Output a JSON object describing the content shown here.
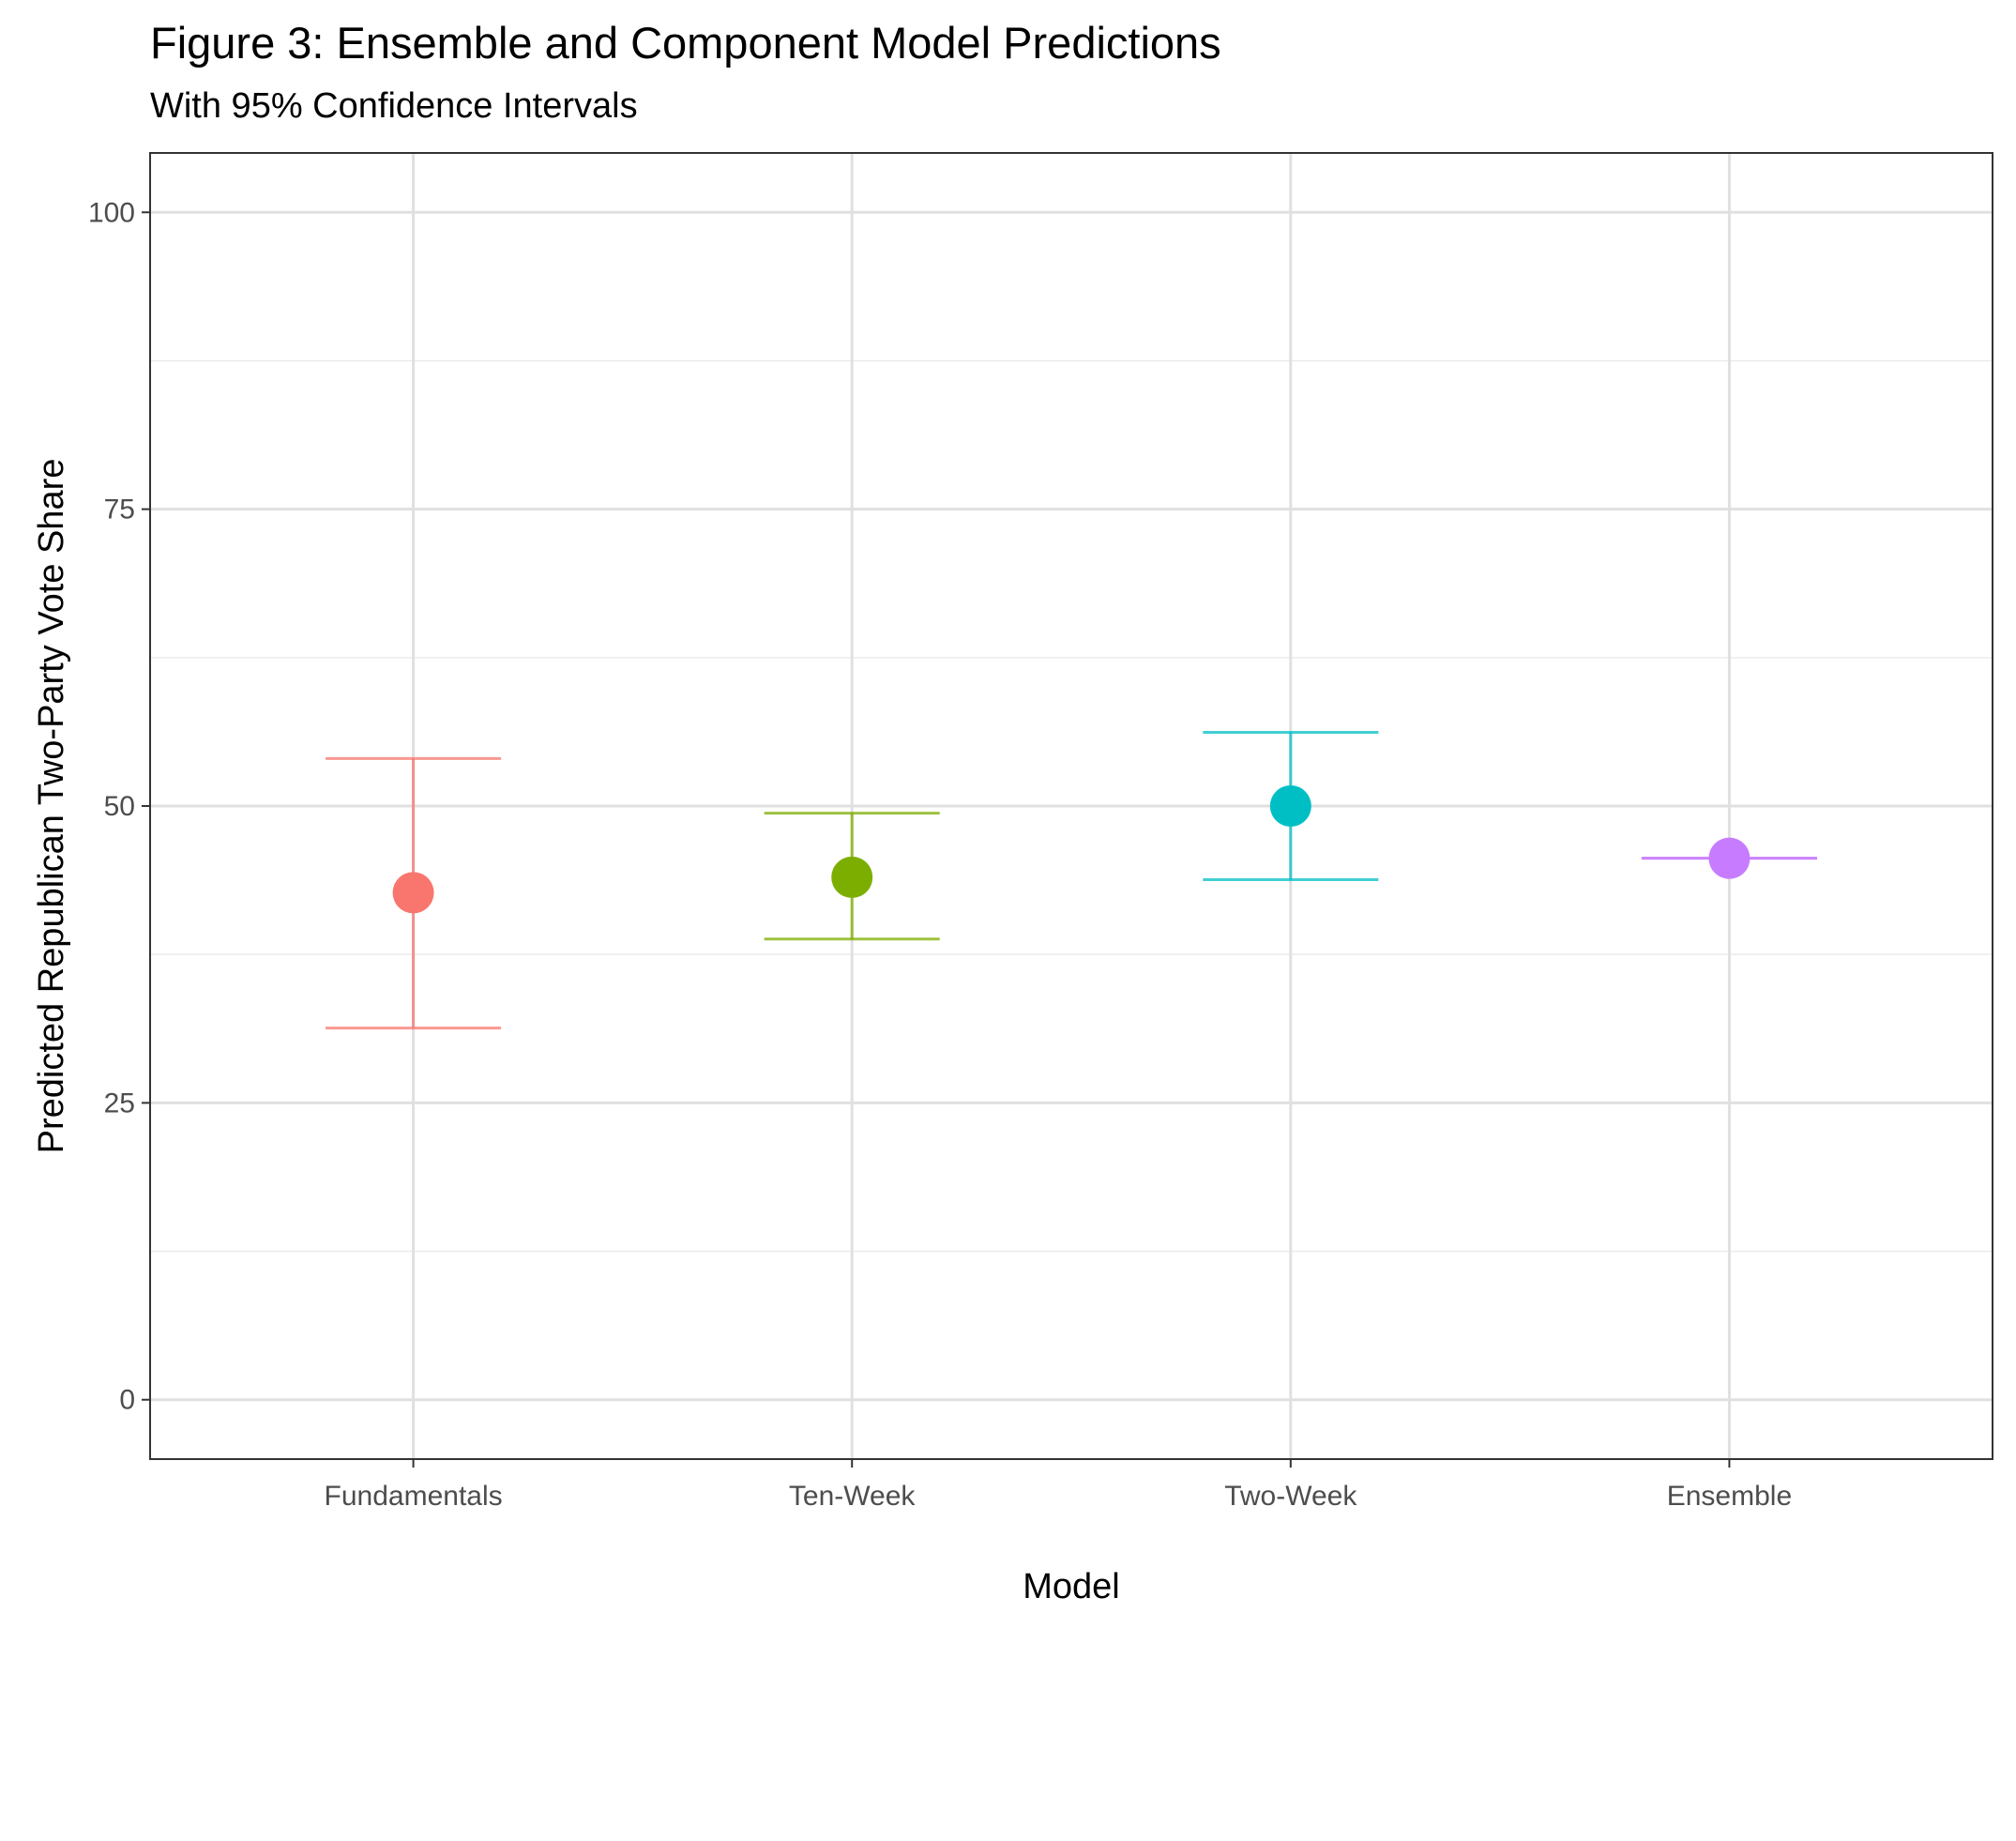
{
  "chart_data": {
    "type": "scatter",
    "title": "Figure 3: Ensemble and Component Model Predictions",
    "subtitle": "With 95% Confidence Intervals",
    "xlabel": "Model",
    "ylabel": "Predicted Republican Two-Party Vote Share",
    "categories": [
      "Fundamentals",
      "Ten-Week",
      "Two-Week",
      "Ensemble"
    ],
    "points": [
      {
        "category": "Fundamentals",
        "estimate": 42.7,
        "lower": 31.3,
        "upper": 54.0,
        "color": "#F8766D"
      },
      {
        "category": "Ten-Week",
        "estimate": 44.0,
        "lower": 38.8,
        "upper": 49.4,
        "color": "#7CAE00"
      },
      {
        "category": "Two-Week",
        "estimate": 50.0,
        "lower": 43.8,
        "upper": 56.2,
        "color": "#00BFC4"
      },
      {
        "category": "Ensemble",
        "estimate": 45.6,
        "lower": 45.6,
        "upper": 45.6,
        "color": "#C77CFF"
      }
    ],
    "ylim": [
      -5,
      105
    ],
    "yticks": [
      0,
      25,
      50,
      75,
      100
    ],
    "grid": true,
    "legend": "none"
  }
}
